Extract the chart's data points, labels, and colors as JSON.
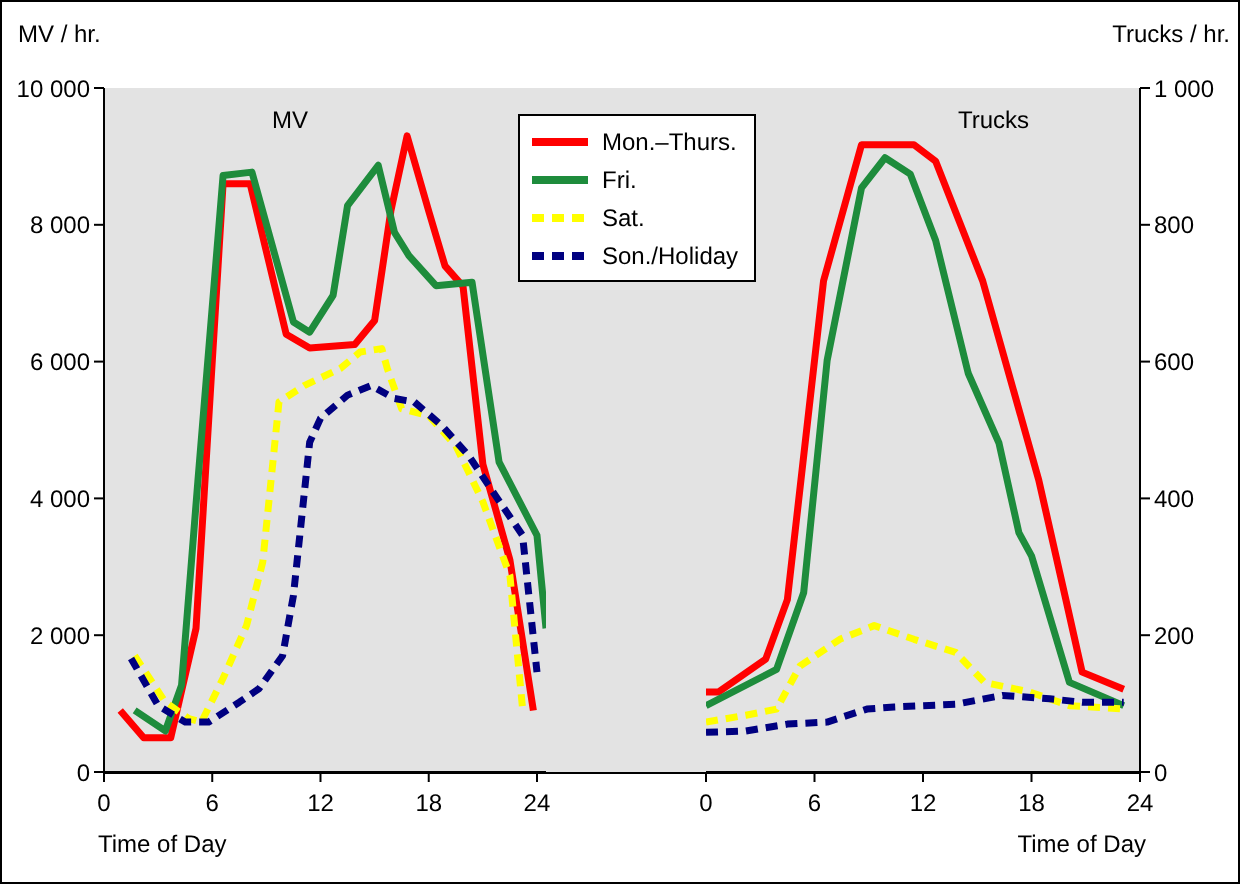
{
  "chart_data": [
    {
      "type": "line",
      "title": "MV",
      "ylabel": "MV / hr.",
      "xlabel": "Time of Day",
      "xlim": [
        0,
        24.5
      ],
      "xticks": [
        0,
        6,
        12,
        18,
        24
      ],
      "ylim": [
        0,
        10000
      ],
      "yticks": [
        0,
        {
          "value": 2000,
          "label": "2 000"
        },
        {
          "value": 4000,
          "label": "4 000"
        },
        {
          "value": 6000,
          "label": "6 000"
        },
        {
          "value": 8000,
          "label": "8 000"
        },
        {
          "value": 10000,
          "label": "10 000"
        }
      ],
      "legend": "top right",
      "series": [
        {
          "name": "Mon.–Thurs.",
          "color": "#ff0000",
          "line_style": "solid",
          "x": [
            0.9,
            2.2,
            3.7,
            5.1,
            6.6,
            8.1,
            10.1,
            11.4,
            13.9,
            15.0,
            15.9,
            16.8,
            18.0,
            18.9,
            19.9,
            21.0,
            22.5,
            23.8
          ],
          "values": [
            900,
            500,
            500,
            2100,
            8600,
            8600,
            6400,
            6200,
            6250,
            6600,
            8200,
            9300,
            8200,
            7400,
            7100,
            4500,
            3100,
            900
          ]
        },
        {
          "name": "Fri.",
          "color": "#1e8c3c",
          "line_style": "solid",
          "x": [
            1.7,
            3.4,
            4.3,
            5.2,
            6.6,
            8.2,
            10.5,
            11.4,
            12.7,
            13.5,
            15.2,
            16.1,
            16.9,
            18.4,
            20.4,
            21.9,
            24.0,
            24.5
          ],
          "values": [
            900,
            600,
            1270,
            4240,
            8720,
            8770,
            6580,
            6430,
            6970,
            8280,
            8870,
            7890,
            7550,
            7110,
            7160,
            4530,
            3460,
            2100
          ]
        },
        {
          "name": "Sat.",
          "color": "#ffff00",
          "line_style": "dashed",
          "x": [
            1.7,
            3.4,
            4.7,
            5.4,
            6.6,
            7.9,
            8.8,
            9.7,
            11.1,
            13.1,
            14.2,
            15.4,
            15.7,
            16.5,
            18.0,
            19.5,
            21.0,
            22.5,
            23.2
          ],
          "values": [
            1700,
            1020,
            780,
            730,
            1370,
            2140,
            3070,
            5410,
            5650,
            5900,
            6140,
            6190,
            5900,
            5310,
            5210,
            4770,
            3950,
            2870,
            930
          ]
        },
        {
          "name": "Son./Holiday",
          "color": "#000080",
          "line_style": "dashed",
          "x": [
            1.5,
            3.0,
            4.5,
            5.8,
            7.5,
            8.6,
            9.9,
            10.5,
            11.4,
            12.0,
            13.5,
            14.8,
            16.1,
            17.2,
            18.7,
            20.2,
            21.7,
            23.2,
            24.0
          ],
          "values": [
            1660,
            970,
            730,
            730,
            1020,
            1220,
            1700,
            2580,
            4820,
            5170,
            5510,
            5650,
            5460,
            5410,
            5070,
            4630,
            4040,
            3460,
            1460
          ]
        }
      ]
    },
    {
      "type": "line",
      "title": "Trucks",
      "ylabel": "Trucks / hr.",
      "xlabel": "Time of Day",
      "xlim": [
        0,
        24
      ],
      "xticks": [
        0,
        6,
        12,
        18,
        24
      ],
      "ylim": [
        0,
        1000
      ],
      "yticks": [
        0,
        200,
        400,
        600,
        800,
        {
          "value": 1000,
          "label": "1 000"
        }
      ],
      "series": [
        {
          "color": "#ff0000",
          "line_style": "solid",
          "x": [
            0,
            0.7,
            3.3,
            4.5,
            6.5,
            8.6,
            10.0,
            11.5,
            12.7,
            15.3,
            18.4,
            19.9,
            20.8,
            23.1
          ],
          "values": [
            117,
            117,
            165,
            252,
            718,
            917,
            917,
            917,
            893,
            718,
            427,
            252,
            146,
            121
          ]
        },
        {
          "color": "#1e8c3c",
          "line_style": "solid",
          "x": [
            0,
            3.9,
            5.4,
            6.7,
            8.6,
            9.9,
            11.3,
            12.7,
            14.5,
            16.2,
            17.3,
            18.0,
            20.1,
            23.1
          ],
          "values": [
            97,
            150,
            262,
            602,
            854,
            898,
            874,
            777,
            583,
            481,
            350,
            316,
            131,
            97
          ]
        },
        {
          "color": "#ffff00",
          "line_style": "dashed",
          "x": [
            0,
            2.2,
            3.9,
            5.2,
            7.4,
            9.3,
            11.5,
            13.8,
            15.4,
            17.9,
            20.1,
            23.1
          ],
          "values": [
            73,
            83,
            92,
            155,
            194,
            214,
            194,
            175,
            131,
            117,
            97,
            92
          ]
        },
        {
          "color": "#000080",
          "line_style": "dashed",
          "x": [
            0,
            2.2,
            4.5,
            6.7,
            8.9,
            10.4,
            13.8,
            16.4,
            19.0,
            20.8,
            23.1
          ],
          "values": [
            58,
            60,
            70,
            73,
            92,
            95,
            99,
            112,
            107,
            102,
            102
          ]
        }
      ]
    }
  ]
}
